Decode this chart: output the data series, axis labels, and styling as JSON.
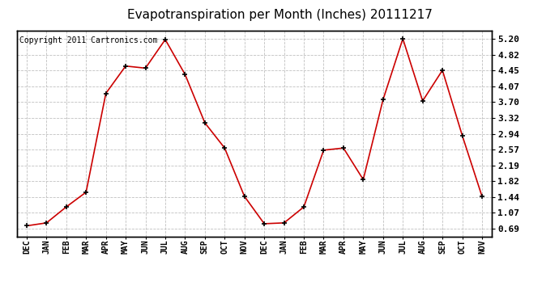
{
  "title": "Evapotranspiration per Month (Inches) 20111217",
  "copyright": "Copyright 2011 Cartronics.com",
  "x_labels": [
    "DEC",
    "JAN",
    "FEB",
    "MAR",
    "APR",
    "MAY",
    "JUN",
    "JUL",
    "AUG",
    "SEP",
    "OCT",
    "NOV",
    "DEC",
    "JAN",
    "FEB",
    "MAR",
    "APR",
    "MAY",
    "JUN",
    "JUL",
    "AUG",
    "SEP",
    "OCT",
    "NOV"
  ],
  "y_values": [
    0.75,
    0.82,
    1.2,
    1.55,
    3.9,
    4.55,
    4.5,
    5.18,
    4.35,
    3.2,
    2.6,
    1.45,
    0.8,
    0.82,
    1.2,
    2.55,
    2.6,
    1.85,
    3.75,
    5.2,
    3.72,
    4.45,
    2.9,
    1.45
  ],
  "line_color": "#cc0000",
  "marker": "+",
  "marker_color": "#000000",
  "bg_color": "#ffffff",
  "plot_bg_color": "#ffffff",
  "grid_color": "#c0c0c0",
  "y_ticks": [
    0.69,
    1.07,
    1.44,
    1.82,
    2.19,
    2.57,
    2.94,
    3.32,
    3.7,
    4.07,
    4.45,
    4.82,
    5.2
  ],
  "ylim_min": 0.5,
  "ylim_max": 5.4,
  "title_fontsize": 11,
  "copyright_fontsize": 7,
  "tick_fontsize": 7,
  "ytick_fontsize": 8
}
